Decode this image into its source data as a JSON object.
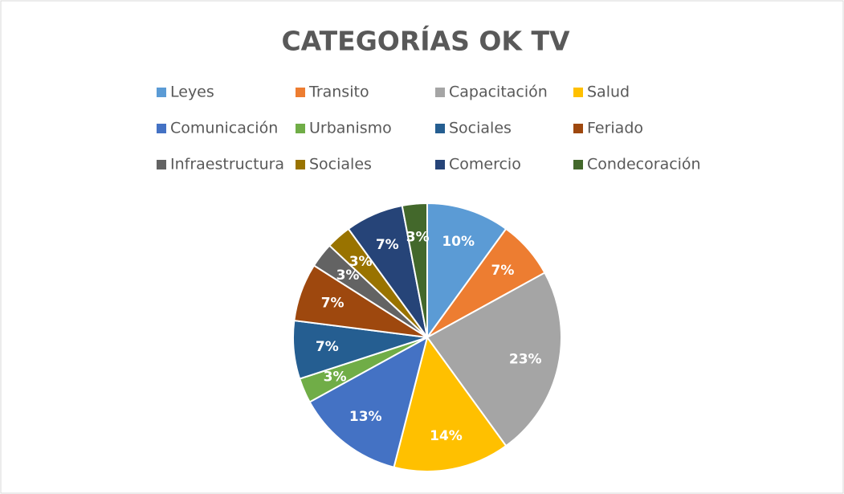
{
  "chart_data": {
    "type": "pie",
    "title": "CATEGORÍAS OK TV",
    "categories": [
      "Leyes",
      "Transito",
      "Capacitación",
      "Salud",
      "Comunicación",
      "Urbanismo",
      "Sociales",
      "Feriado",
      "Infraestructura",
      "Sociales",
      "Comercio",
      "Condecoración"
    ],
    "values": [
      10,
      7,
      23,
      14,
      13,
      3,
      7,
      7,
      3,
      3,
      7,
      3
    ],
    "value_labels": [
      "10%",
      "7%",
      "23%",
      "14%",
      "13%",
      "3%",
      "7%",
      "7%",
      "3%",
      "3%",
      "7%",
      "3%"
    ],
    "colors": [
      "#5b9bd5",
      "#ed7d31",
      "#a5a5a5",
      "#ffc000",
      "#4472c4",
      "#70ad47",
      "#255e91",
      "#9e480e",
      "#636363",
      "#997300",
      "#264478",
      "#43682b"
    ],
    "legend": "top"
  }
}
